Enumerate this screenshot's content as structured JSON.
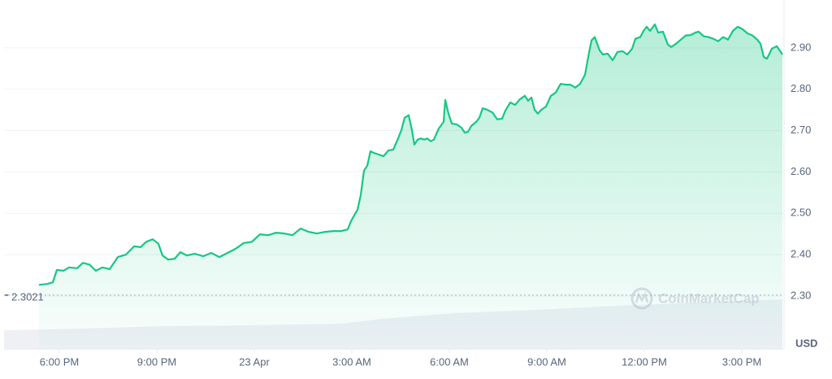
{
  "chart_data": {
    "type": "line",
    "x": [
      17.375,
      17.625,
      17.8,
      17.925,
      18.125,
      18.3,
      18.55,
      18.725,
      18.925,
      19.125,
      19.325,
      19.55,
      19.8,
      20.05,
      20.3,
      20.5,
      20.675,
      20.875,
      21.05,
      21.175,
      21.35,
      21.55,
      21.725,
      21.925,
      22.175,
      22.425,
      22.675,
      22.925,
      23.175,
      23.425,
      23.675,
      23.925,
      24.175,
      24.425,
      24.675,
      24.925,
      25.175,
      25.425,
      25.675,
      25.925,
      26.175,
      26.425,
      26.675,
      26.875,
      26.975,
      27.075,
      27.175,
      27.275,
      27.375,
      27.475,
      27.575,
      27.675,
      27.825,
      27.975,
      28.125,
      28.275,
      28.425,
      28.525,
      28.625,
      28.75,
      28.85,
      28.925,
      29.025,
      29.125,
      29.225,
      29.325,
      29.425,
      29.525,
      29.675,
      29.825,
      29.875,
      29.975,
      30.075,
      30.225,
      30.375,
      30.475,
      30.575,
      30.675,
      30.825,
      30.925,
      31.025,
      31.175,
      31.325,
      31.475,
      31.625,
      31.725,
      31.875,
      32.025,
      32.175,
      32.325,
      32.425,
      32.525,
      32.625,
      32.725,
      32.825,
      32.975,
      33.125,
      33.275,
      33.425,
      33.575,
      33.725,
      33.875,
      34.025,
      34.175,
      34.275,
      34.375,
      34.475,
      34.625,
      34.725,
      34.875,
      35.025,
      35.175,
      35.325,
      35.475,
      35.625,
      35.725,
      35.875,
      35.975,
      36.075,
      36.175,
      36.325,
      36.425,
      36.575,
      36.725,
      36.825,
      36.975,
      37.125,
      37.275,
      37.425,
      37.575,
      37.675,
      37.825,
      37.975,
      38.125,
      38.275,
      38.425,
      38.575,
      38.725,
      38.875,
      39.025,
      39.175,
      39.325,
      39.475,
      39.575,
      39.675,
      39.775,
      39.925,
      40.075,
      40.25
    ],
    "values": [
      2.327,
      2.329,
      2.333,
      2.363,
      2.361,
      2.369,
      2.367,
      2.38,
      2.376,
      2.361,
      2.369,
      2.365,
      2.394,
      2.4,
      2.42,
      2.418,
      2.431,
      2.437,
      2.426,
      2.398,
      2.388,
      2.39,
      2.406,
      2.398,
      2.402,
      2.396,
      2.404,
      2.394,
      2.404,
      2.414,
      2.428,
      2.431,
      2.449,
      2.447,
      2.453,
      2.451,
      2.447,
      2.463,
      2.455,
      2.451,
      2.455,
      2.457,
      2.457,
      2.461,
      2.481,
      2.495,
      2.508,
      2.544,
      2.603,
      2.615,
      2.65,
      2.646,
      2.642,
      2.638,
      2.652,
      2.654,
      2.681,
      2.701,
      2.731,
      2.737,
      2.701,
      2.666,
      2.678,
      2.681,
      2.678,
      2.681,
      2.674,
      2.678,
      2.705,
      2.721,
      2.774,
      2.741,
      2.717,
      2.715,
      2.707,
      2.695,
      2.697,
      2.711,
      2.721,
      2.731,
      2.754,
      2.75,
      2.744,
      2.727,
      2.729,
      2.748,
      2.768,
      2.762,
      2.776,
      2.784,
      2.772,
      2.78,
      2.75,
      2.741,
      2.75,
      2.758,
      2.784,
      2.792,
      2.813,
      2.811,
      2.811,
      2.804,
      2.813,
      2.835,
      2.878,
      2.918,
      2.926,
      2.894,
      2.884,
      2.886,
      2.87,
      2.89,
      2.892,
      2.884,
      2.898,
      2.922,
      2.926,
      2.941,
      2.951,
      2.941,
      2.957,
      2.937,
      2.939,
      2.908,
      2.902,
      2.91,
      2.92,
      2.93,
      2.931,
      2.937,
      2.939,
      2.928,
      2.926,
      2.922,
      2.916,
      2.926,
      2.92,
      2.941,
      2.951,
      2.945,
      2.935,
      2.93,
      2.92,
      2.91,
      2.878,
      2.874,
      2.898,
      2.904,
      2.884
    ],
    "color": "#16c784",
    "xlim": [
      16.3,
      40.25
    ],
    "xticks": [
      {
        "value": 18,
        "label": "6:00 PM"
      },
      {
        "value": 21,
        "label": "9:00 PM"
      },
      {
        "value": 24,
        "label": "23 Apr"
      },
      {
        "value": 27,
        "label": "3:00 AM"
      },
      {
        "value": 30,
        "label": "6:00 AM"
      },
      {
        "value": 33,
        "label": "9:00 AM"
      },
      {
        "value": 36,
        "label": "12:00 PM"
      },
      {
        "value": 39,
        "label": "3:00 PM"
      }
    ],
    "ylim": [
      2.17,
      3.0
    ],
    "yticks": [
      {
        "value": 2.3,
        "label": "2.30"
      },
      {
        "value": 2.4,
        "label": "2.40"
      },
      {
        "value": 2.5,
        "label": "2.50"
      },
      {
        "value": 2.6,
        "label": "2.60"
      },
      {
        "value": 2.7,
        "label": "2.70"
      },
      {
        "value": 2.8,
        "label": "2.80"
      },
      {
        "value": 2.9,
        "label": "2.90"
      }
    ],
    "grid": true,
    "reference_line": 2.3021,
    "y_axis_label": "USD",
    "watermark": "CoinMarketCap"
  }
}
